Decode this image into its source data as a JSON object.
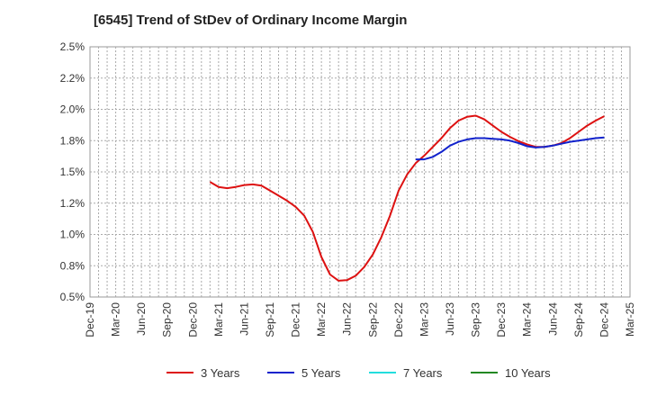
{
  "chart_data": {
    "type": "line",
    "title": "[6545]  Trend of StDev of Ordinary Income Margin",
    "xlabel": "",
    "ylabel": "",
    "x_ticks": [
      "Dec-19",
      "Mar-20",
      "Jun-20",
      "Sep-20",
      "Dec-20",
      "Mar-21",
      "Jun-21",
      "Sep-21",
      "Dec-21",
      "Mar-22",
      "Jun-22",
      "Sep-22",
      "Dec-22",
      "Mar-23",
      "Jun-23",
      "Sep-23",
      "Dec-23",
      "Mar-24",
      "Jun-24",
      "Sep-24",
      "Dec-24",
      "Mar-25"
    ],
    "y_ticks": [
      "0.5%",
      "0.8%",
      "1.0%",
      "1.2%",
      "1.5%",
      "1.8%",
      "2.0%",
      "2.2%",
      "2.5%"
    ],
    "ylim": [
      0.5,
      2.5
    ],
    "grid": true,
    "legend_position": "bottom",
    "series": [
      {
        "name": "3 Years",
        "color": "#dd1111",
        "x": [
          "Feb-21",
          "Mar-21",
          "Apr-21",
          "May-21",
          "Jun-21",
          "Jul-21",
          "Aug-21",
          "Sep-21",
          "Oct-21",
          "Nov-21",
          "Dec-21",
          "Jan-22",
          "Feb-22",
          "Mar-22",
          "Apr-22",
          "May-22",
          "Jun-22",
          "Jul-22",
          "Aug-22",
          "Sep-22",
          "Oct-22",
          "Nov-22",
          "Dec-22",
          "Jan-23",
          "Feb-23",
          "Mar-23",
          "Apr-23",
          "May-23",
          "Jun-23",
          "Jul-23",
          "Aug-23",
          "Sep-23",
          "Oct-23",
          "Nov-23",
          "Dec-23",
          "Jan-24",
          "Feb-24",
          "Mar-24",
          "Apr-24",
          "May-24",
          "Jun-24",
          "Jul-24",
          "Aug-24",
          "Sep-24",
          "Oct-24",
          "Nov-24",
          "Dec-24"
        ],
        "values": [
          1.42,
          1.38,
          1.37,
          1.38,
          1.395,
          1.4,
          1.39,
          1.35,
          1.31,
          1.27,
          1.22,
          1.15,
          1.02,
          0.82,
          0.68,
          0.63,
          0.635,
          0.67,
          0.74,
          0.84,
          0.98,
          1.15,
          1.35,
          1.48,
          1.57,
          1.63,
          1.7,
          1.77,
          1.85,
          1.91,
          1.94,
          1.95,
          1.92,
          1.87,
          1.82,
          1.78,
          1.745,
          1.72,
          1.7,
          1.7,
          1.71,
          1.73,
          1.77,
          1.82,
          1.87,
          1.91,
          1.945
        ]
      },
      {
        "name": "5 Years",
        "color": "#1122cc",
        "x": [
          "Feb-23",
          "Mar-23",
          "Apr-23",
          "May-23",
          "Jun-23",
          "Jul-23",
          "Aug-23",
          "Sep-23",
          "Oct-23",
          "Nov-23",
          "Dec-23",
          "Jan-24",
          "Feb-24",
          "Mar-24",
          "Apr-24",
          "May-24",
          "Jun-24",
          "Jul-24",
          "Aug-24",
          "Sep-24",
          "Oct-24",
          "Nov-24",
          "Dec-24"
        ],
        "values": [
          1.6,
          1.6,
          1.62,
          1.66,
          1.71,
          1.74,
          1.76,
          1.77,
          1.77,
          1.765,
          1.76,
          1.75,
          1.73,
          1.705,
          1.695,
          1.7,
          1.71,
          1.725,
          1.74,
          1.75,
          1.76,
          1.77,
          1.775
        ]
      },
      {
        "name": "7 Years",
        "color": "#22dddd",
        "x": [],
        "values": []
      },
      {
        "name": "10 Years",
        "color": "#228822",
        "x": [],
        "values": []
      }
    ]
  }
}
